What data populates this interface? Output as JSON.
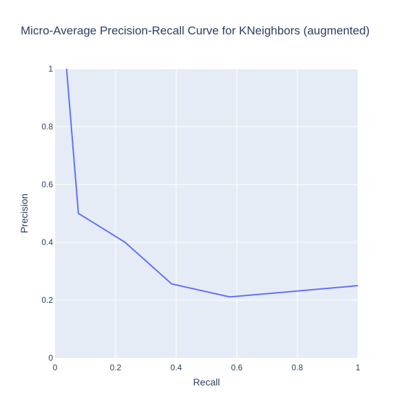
{
  "chart_data": {
    "type": "line",
    "title": "Micro-Average Precision-Recall Curve for KNeighbors (augmented)",
    "xlabel": "Recall",
    "ylabel": "Precision",
    "xlim": [
      0,
      1
    ],
    "ylim": [
      0,
      1
    ],
    "xticks": [
      0,
      0.2,
      0.4,
      0.6,
      0.8,
      1
    ],
    "yticks": [
      0,
      0.2,
      0.4,
      0.6,
      0.8,
      1
    ],
    "xtick_labels": [
      "0",
      "0.2",
      "0.4",
      "0.6",
      "0.8",
      "1"
    ],
    "ytick_labels": [
      "0",
      "0.2",
      "0.4",
      "0.6",
      "0.8",
      "1"
    ],
    "grid": true,
    "colors": {
      "plot_bg": "#e5ecf6",
      "grid": "#ffffff",
      "line": "#636efa",
      "text": "#2a3f5f"
    },
    "series": [
      {
        "x": [
          0.038,
          0.077,
          0.231,
          0.385,
          0.577,
          1.0
        ],
        "y": [
          1.0,
          0.5,
          0.4,
          0.256,
          0.211,
          0.25
        ]
      }
    ]
  }
}
